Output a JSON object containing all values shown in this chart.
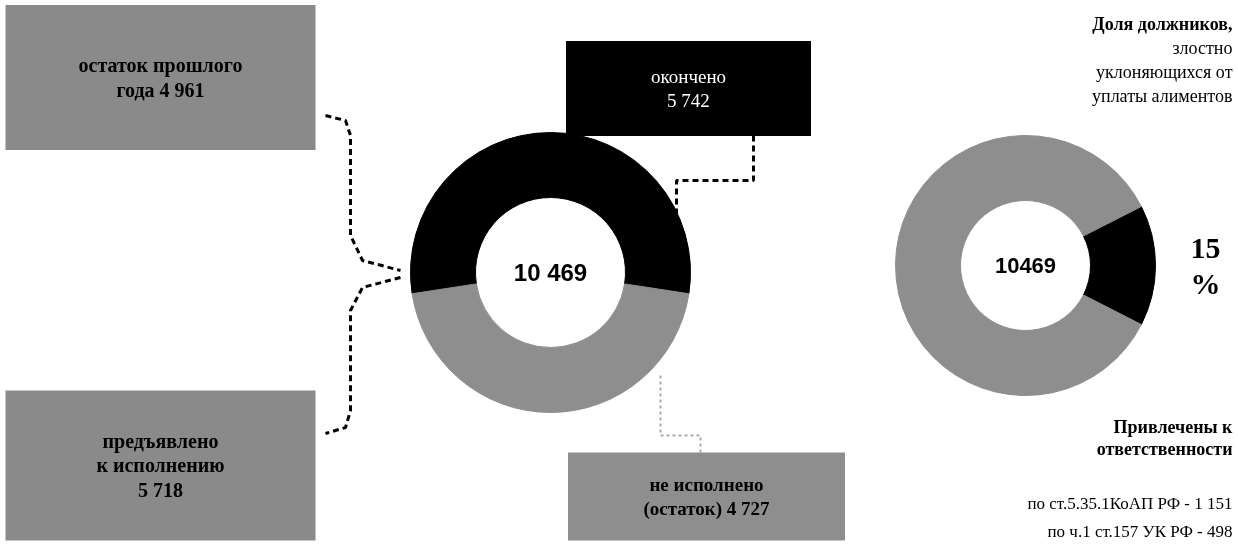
{
  "chart_data": [
    {
      "type": "donut",
      "categories": [
        "окончено",
        "не исполнено (остаток)"
      ],
      "values": [
        5742,
        4727
      ],
      "colors": [
        "#000000",
        "#8e8e8e"
      ],
      "value_labels": [
        "5 742",
        "4 727"
      ],
      "annotations": [
        "10 469",
        "остаток прошлого года 4 961",
        "предъявлено к исполнению 5 718"
      ]
    },
    {
      "type": "donut",
      "title": "Доля должников, злостно уклоняющихся от уплаты алиментов",
      "categories": [
        null,
        null
      ],
      "values": [
        15,
        85
      ],
      "colors": [
        "#000000",
        "#8e8e8e"
      ],
      "value_labels": [
        "15 %",
        null
      ],
      "annotations": [
        "10469",
        "Привлечены к ответственности",
        "по ст.5.35.1КоАП РФ - 1 151",
        "по ч.1 ст.157 УК РФ - 498"
      ]
    }
  ]
}
